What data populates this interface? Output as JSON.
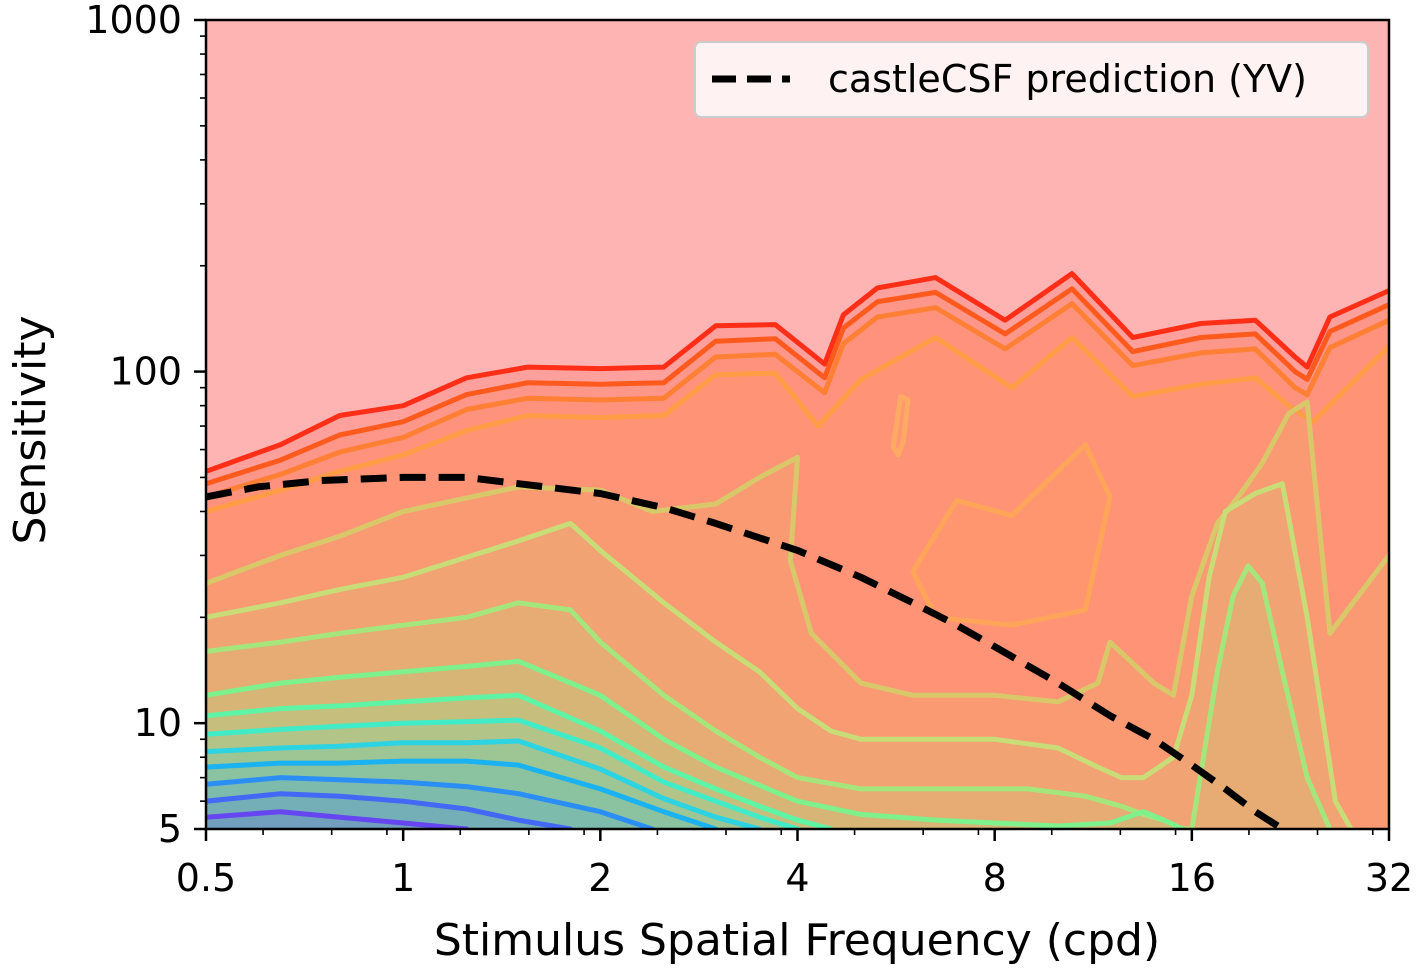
{
  "chart_data": {
    "type": "line",
    "xlabel": "Stimulus Spatial Frequency (cpd)",
    "ylabel": "Sensitivity",
    "xscale": "log2",
    "yscale": "log10",
    "xlim": [
      0.5,
      32
    ],
    "ylim": [
      5,
      1000
    ],
    "x_ticks": [
      0.5,
      1,
      2,
      4,
      8,
      16,
      32
    ],
    "x_tick_labels": [
      "0.5",
      "1",
      "2",
      "4",
      "8",
      "16",
      "32"
    ],
    "y_ticks": [
      5,
      10,
      100,
      1000
    ],
    "y_tick_labels": [
      "5",
      "10",
      "100",
      "1000"
    ],
    "grid": false,
    "legend_position": "top-right",
    "background_fill": "#ffb4b4",
    "series": [
      {
        "name": "castleCSF prediction (YV)",
        "style": "dashed",
        "color": "#000000",
        "x": [
          0.5,
          0.6,
          0.75,
          1.0,
          1.25,
          1.5,
          2.0,
          2.5,
          3.0,
          4.0,
          5.0,
          6.0,
          7.0,
          8.0,
          10.0,
          12.0,
          14.0,
          16.0,
          18.0,
          20.0,
          22.0
        ],
        "y": [
          44,
          47,
          49,
          50,
          50,
          48,
          45,
          41,
          37,
          31,
          26,
          22,
          19,
          16.5,
          13,
          10.5,
          9,
          7.6,
          6.5,
          5.6,
          5.0
        ]
      }
    ],
    "contours": [
      {
        "color": "#ff2e17",
        "x": [
          0.5,
          0.65,
          0.8,
          1.0,
          1.25,
          1.55,
          2.0,
          2.5,
          3.0,
          3.7,
          4.4,
          4.7,
          5.3,
          6.5,
          8.3,
          10.5,
          13.0,
          16.5,
          20.0,
          23.0,
          24.0,
          26.0,
          32.0
        ],
        "y": [
          52,
          62,
          75,
          80,
          96,
          103,
          102,
          103,
          135,
          136,
          105,
          145,
          173,
          185,
          140,
          190,
          125,
          137,
          140,
          110,
          103,
          143,
          170
        ]
      },
      {
        "color": "#ff5a1e",
        "x": [
          0.5,
          0.65,
          0.8,
          1.0,
          1.25,
          1.55,
          2.0,
          2.5,
          3.0,
          3.7,
          4.4,
          4.7,
          5.3,
          6.5,
          8.3,
          10.5,
          13.0,
          16.5,
          20.0,
          23.0,
          24.0,
          26.0,
          32.0
        ],
        "y": [
          48,
          56,
          66,
          72,
          86,
          93,
          92,
          93,
          122,
          124,
          96,
          133,
          158,
          168,
          128,
          172,
          114,
          125,
          128,
          100,
          95,
          130,
          155
        ]
      },
      {
        "color": "#ff7f35",
        "x": [
          0.5,
          0.65,
          0.8,
          1.0,
          1.25,
          1.55,
          2.0,
          2.5,
          3.0,
          3.7,
          4.4,
          4.7,
          5.3,
          6.5,
          8.3,
          10.5,
          13.0,
          16.5,
          20.0,
          23.0,
          24.0,
          26.0,
          32.0
        ],
        "y": [
          44,
          51,
          59,
          65,
          78,
          84,
          83,
          84,
          110,
          112,
          87,
          120,
          143,
          152,
          116,
          156,
          104,
          113,
          116,
          90,
          86,
          117,
          140
        ]
      },
      {
        "color": "#ff9c45",
        "x": [
          0.5,
          0.65,
          0.8,
          1.0,
          1.25,
          1.55,
          2.0,
          2.5,
          3.0,
          3.7,
          4.3,
          5.0,
          6.5,
          8.5,
          10.5,
          13.0,
          16.5,
          20.0,
          22.5,
          24.5,
          32.0
        ],
        "y": [
          40,
          46,
          52,
          58,
          68,
          75,
          74,
          75,
          98,
          99,
          70,
          95,
          125,
          90,
          125,
          85,
          92,
          96,
          80,
          72,
          118
        ]
      },
      {
        "color": "#d8c86a",
        "x": [
          0.5,
          0.65,
          0.8,
          1.0,
          1.5,
          2.0,
          2.4,
          3.0,
          3.5,
          4.0,
          3.9,
          4.2,
          5.0,
          6.0,
          8.0,
          10.0,
          11.5,
          12.0,
          14.0,
          15.0,
          16.0,
          17.5,
          19.0,
          20.5,
          22.5,
          24.0,
          26.0,
          32.0
        ],
        "y": [
          25,
          30,
          34,
          40,
          47,
          46,
          40,
          42,
          50,
          57,
          29,
          18,
          13,
          12,
          12,
          11.5,
          13,
          17,
          13,
          12,
          23,
          37,
          45,
          55,
          76,
          82,
          18,
          30
        ]
      },
      {
        "color": "#c8dc78",
        "x": [
          0.5,
          0.65,
          0.8,
          1.0,
          1.5,
          1.8,
          2.0,
          2.5,
          3.0,
          3.5,
          4.0,
          4.5,
          5.0,
          6.0,
          8.0,
          10.0,
          11.5,
          12.5,
          13.5,
          15.0,
          16.0,
          17.0,
          18.0,
          20.0,
          22.0,
          24.0,
          26.5,
          28.0
        ],
        "y": [
          20,
          22,
          24,
          26,
          33,
          37,
          31,
          22,
          17,
          14,
          11,
          9.5,
          9,
          9,
          9,
          8.5,
          7.5,
          7,
          7,
          8,
          12,
          26,
          40,
          45,
          48,
          20,
          6,
          5
        ]
      },
      {
        "color": "#a5e67c",
        "x": [
          0.5,
          0.65,
          0.8,
          1.0,
          1.25,
          1.5,
          1.8,
          2.0,
          2.5,
          3.0,
          3.5,
          4.0,
          5.0,
          7.0,
          9.0,
          11.0,
          12.5,
          13.5,
          14.5,
          15.5,
          16.0,
          17.5,
          18.5,
          19.5,
          20.5,
          22.0,
          24.0,
          26.0
        ],
        "y": [
          16,
          17,
          18,
          19,
          20,
          22,
          21,
          17,
          12,
          9.5,
          8,
          7,
          6.5,
          6.5,
          6.5,
          6.2,
          5.8,
          5.5,
          5.3,
          5.0,
          5.0,
          14,
          23,
          28,
          25,
          14,
          7,
          5
        ]
      },
      {
        "color": "#7ef08c",
        "x": [
          0.5,
          0.65,
          0.8,
          1.0,
          1.25,
          1.5,
          2.0,
          2.5,
          3.0,
          4.0,
          5.0,
          6.5,
          8.0,
          10.0,
          12.0,
          13.5,
          14.5,
          15.5
        ],
        "y": [
          12,
          13,
          13.5,
          14,
          14.5,
          15,
          12,
          9,
          7.5,
          6,
          5.5,
          5.3,
          5.2,
          5.1,
          5.2,
          5.6,
          5.3,
          5.0
        ]
      },
      {
        "color": "#5df5a5",
        "x": [
          0.5,
          0.65,
          0.8,
          1.0,
          1.25,
          1.5,
          2.0,
          2.5,
          3.0,
          3.5,
          4.0,
          4.5
        ],
        "y": [
          10.5,
          11,
          11.2,
          11.5,
          11.8,
          12,
          9.5,
          7.5,
          6.5,
          5.8,
          5.3,
          5.0
        ]
      },
      {
        "color": "#40ecc8",
        "x": [
          0.5,
          0.65,
          0.8,
          1.0,
          1.25,
          1.5,
          2.0,
          2.5,
          3.0,
          3.5,
          4.0
        ],
        "y": [
          9.3,
          9.6,
          9.8,
          10,
          10.1,
          10.2,
          8.5,
          6.8,
          6.0,
          5.4,
          5.0
        ]
      },
      {
        "color": "#2cd3e2",
        "x": [
          0.5,
          0.65,
          0.8,
          1.0,
          1.25,
          1.5,
          2.0,
          2.5,
          3.0,
          3.5
        ],
        "y": [
          8.3,
          8.5,
          8.6,
          8.8,
          8.8,
          8.9,
          7.4,
          6.1,
          5.4,
          5.0
        ]
      },
      {
        "color": "#1ab2f0",
        "x": [
          0.5,
          0.65,
          0.8,
          1.0,
          1.25,
          1.5,
          2.0,
          2.5,
          3.0
        ],
        "y": [
          7.5,
          7.7,
          7.7,
          7.8,
          7.8,
          7.6,
          6.5,
          5.6,
          5.0
        ]
      },
      {
        "color": "#2a8ef5",
        "x": [
          0.5,
          0.65,
          0.8,
          1.0,
          1.25,
          1.5,
          2.0,
          2.4
        ],
        "y": [
          6.7,
          7.0,
          6.9,
          6.8,
          6.6,
          6.3,
          5.6,
          5.0
        ]
      },
      {
        "color": "#4368f5",
        "x": [
          0.5,
          0.65,
          0.8,
          1.0,
          1.25,
          1.5,
          1.8
        ],
        "y": [
          6.0,
          6.3,
          6.2,
          6.0,
          5.7,
          5.3,
          5.0
        ]
      },
      {
        "color": "#6546f0",
        "x": [
          0.5,
          0.65,
          0.8,
          1.0,
          1.25
        ],
        "y": [
          5.4,
          5.6,
          5.4,
          5.2,
          5.0
        ]
      }
    ],
    "closed_contours": [
      {
        "color": "#ffa55a",
        "x": [
          6.0,
          7.0,
          8.5,
          11.0,
          12.0,
          11.0,
          8.5,
          6.5,
          6.0
        ],
        "y": [
          27,
          43,
          39,
          62,
          44,
          21,
          19,
          20,
          27
        ]
      },
      {
        "color": "#ffaa64",
        "x": [
          5.6,
          5.75,
          5.9,
          5.8,
          5.7,
          5.6
        ],
        "y": [
          61,
          85,
          83,
          63,
          58,
          61
        ]
      }
    ]
  }
}
